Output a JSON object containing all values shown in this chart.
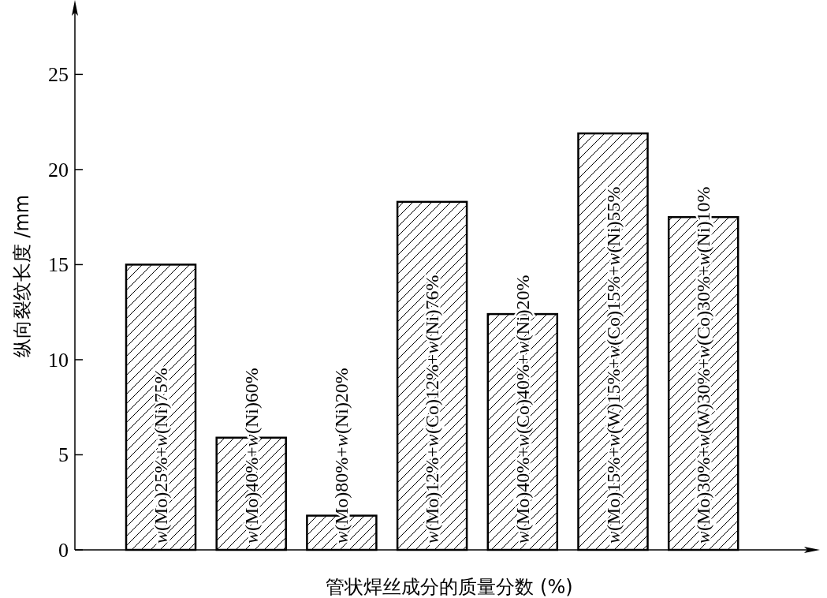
{
  "chart_data": {
    "type": "bar",
    "xlabel": "管状焊丝成分的质量分数 (%)",
    "ylabel": "纵向裂纹长度 /mm",
    "categories": [
      "*w*(Mo)25%+*w*(Ni)75%",
      "*w*(Mo)40%+*w*(Ni)60%",
      "*w*(Mo)80%+*w*(Ni)20%",
      "*w*(Mo)12%+*w*(Co)12%+*w*(Ni)76%",
      "*w*(Mo)40%+*w*(Co)40%+*w*(Ni)20%",
      "*w*(Mo)15%+*w*(W)15%+*w*(Co)15%+*w*(Ni)55%",
      "*w*(Mo)30%+*w*(W)30%+*w*(Co)30%+*w*(Ni)10%"
    ],
    "values": [
      15,
      5.9,
      1.8,
      18.3,
      12.4,
      21.9,
      17.5
    ],
    "ylim": [
      0,
      28.5
    ],
    "yticks": [
      0,
      5,
      10,
      15,
      20,
      25
    ]
  }
}
